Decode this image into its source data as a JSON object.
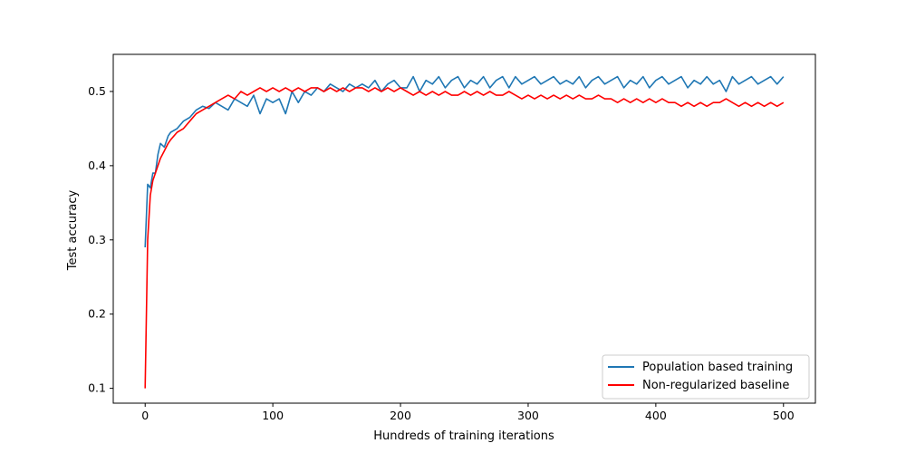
{
  "chart_data": {
    "type": "line",
    "title": "",
    "xlabel": "Hundreds of training iterations",
    "ylabel": "Test accuracy",
    "xlim": [
      -25,
      525
    ],
    "ylim": [
      0.08,
      0.55
    ],
    "xticks": [
      0,
      100,
      200,
      300,
      400,
      500
    ],
    "xtick_labels": [
      "0",
      "100",
      "200",
      "300",
      "400",
      "500"
    ],
    "yticks": [
      0.1,
      0.2,
      0.3,
      0.4,
      0.5
    ],
    "ytick_labels": [
      "0.1",
      "0.2",
      "0.3",
      "0.4",
      "0.5"
    ],
    "grid": false,
    "legend_position": "bottom-right",
    "series": [
      {
        "name": "Population based training",
        "color": "#1f77b4",
        "x": [
          0,
          2,
          4,
          6,
          8,
          10,
          12,
          15,
          18,
          20,
          25,
          30,
          35,
          40,
          45,
          50,
          55,
          60,
          65,
          70,
          75,
          80,
          85,
          90,
          95,
          100,
          105,
          110,
          115,
          120,
          125,
          130,
          135,
          140,
          145,
          150,
          155,
          160,
          165,
          170,
          175,
          180,
          185,
          190,
          195,
          200,
          205,
          210,
          215,
          220,
          225,
          230,
          235,
          240,
          245,
          250,
          255,
          260,
          265,
          270,
          275,
          280,
          285,
          290,
          295,
          300,
          305,
          310,
          315,
          320,
          325,
          330,
          335,
          340,
          345,
          350,
          355,
          360,
          365,
          370,
          375,
          380,
          385,
          390,
          395,
          400,
          405,
          410,
          415,
          420,
          425,
          430,
          435,
          440,
          445,
          450,
          455,
          460,
          465,
          470,
          475,
          480,
          485,
          490,
          495,
          500
        ],
        "y": [
          0.29,
          0.375,
          0.37,
          0.39,
          0.39,
          0.415,
          0.43,
          0.425,
          0.44,
          0.445,
          0.45,
          0.46,
          0.465,
          0.475,
          0.48,
          0.477,
          0.485,
          0.48,
          0.475,
          0.49,
          0.485,
          0.48,
          0.495,
          0.47,
          0.49,
          0.485,
          0.49,
          0.47,
          0.5,
          0.485,
          0.5,
          0.495,
          0.505,
          0.5,
          0.51,
          0.505,
          0.5,
          0.51,
          0.505,
          0.51,
          0.505,
          0.515,
          0.5,
          0.51,
          0.515,
          0.505,
          0.505,
          0.52,
          0.5,
          0.515,
          0.51,
          0.52,
          0.505,
          0.515,
          0.52,
          0.505,
          0.515,
          0.51,
          0.52,
          0.505,
          0.515,
          0.52,
          0.505,
          0.52,
          0.51,
          0.515,
          0.52,
          0.51,
          0.515,
          0.52,
          0.51,
          0.515,
          0.51,
          0.52,
          0.505,
          0.515,
          0.52,
          0.51,
          0.515,
          0.52,
          0.505,
          0.515,
          0.51,
          0.52,
          0.505,
          0.515,
          0.52,
          0.51,
          0.515,
          0.52,
          0.505,
          0.515,
          0.51,
          0.52,
          0.51,
          0.515,
          0.5,
          0.52,
          0.51,
          0.515,
          0.52,
          0.51,
          0.515,
          0.52,
          0.51,
          0.52
        ]
      },
      {
        "name": "Non-regularized baseline",
        "color": "#ff0000",
        "x": [
          0,
          2,
          4,
          6,
          8,
          10,
          12,
          15,
          18,
          20,
          25,
          30,
          35,
          40,
          45,
          50,
          55,
          60,
          65,
          70,
          75,
          80,
          85,
          90,
          95,
          100,
          105,
          110,
          115,
          120,
          125,
          130,
          135,
          140,
          145,
          150,
          155,
          160,
          165,
          170,
          175,
          180,
          185,
          190,
          195,
          200,
          205,
          210,
          215,
          220,
          225,
          230,
          235,
          240,
          245,
          250,
          255,
          260,
          265,
          270,
          275,
          280,
          285,
          290,
          295,
          300,
          305,
          310,
          315,
          320,
          325,
          330,
          335,
          340,
          345,
          350,
          355,
          360,
          365,
          370,
          375,
          380,
          385,
          390,
          395,
          400,
          405,
          410,
          415,
          420,
          425,
          430,
          435,
          440,
          445,
          450,
          455,
          460,
          465,
          470,
          475,
          480,
          485,
          490,
          495,
          500
        ],
        "y": [
          0.1,
          0.3,
          0.36,
          0.38,
          0.39,
          0.4,
          0.41,
          0.42,
          0.43,
          0.435,
          0.445,
          0.45,
          0.46,
          0.47,
          0.475,
          0.48,
          0.485,
          0.49,
          0.495,
          0.49,
          0.5,
          0.495,
          0.5,
          0.505,
          0.5,
          0.505,
          0.5,
          0.505,
          0.5,
          0.505,
          0.5,
          0.505,
          0.505,
          0.5,
          0.505,
          0.5,
          0.505,
          0.5,
          0.505,
          0.505,
          0.5,
          0.505,
          0.5,
          0.505,
          0.5,
          0.505,
          0.5,
          0.495,
          0.5,
          0.495,
          0.5,
          0.495,
          0.5,
          0.495,
          0.495,
          0.5,
          0.495,
          0.5,
          0.495,
          0.5,
          0.495,
          0.495,
          0.5,
          0.495,
          0.49,
          0.495,
          0.49,
          0.495,
          0.49,
          0.495,
          0.49,
          0.495,
          0.49,
          0.495,
          0.49,
          0.49,
          0.495,
          0.49,
          0.49,
          0.485,
          0.49,
          0.485,
          0.49,
          0.485,
          0.49,
          0.485,
          0.49,
          0.485,
          0.485,
          0.48,
          0.485,
          0.48,
          0.485,
          0.48,
          0.485,
          0.485,
          0.49,
          0.485,
          0.48,
          0.485,
          0.48,
          0.485,
          0.48,
          0.485,
          0.48,
          0.485
        ]
      }
    ]
  }
}
